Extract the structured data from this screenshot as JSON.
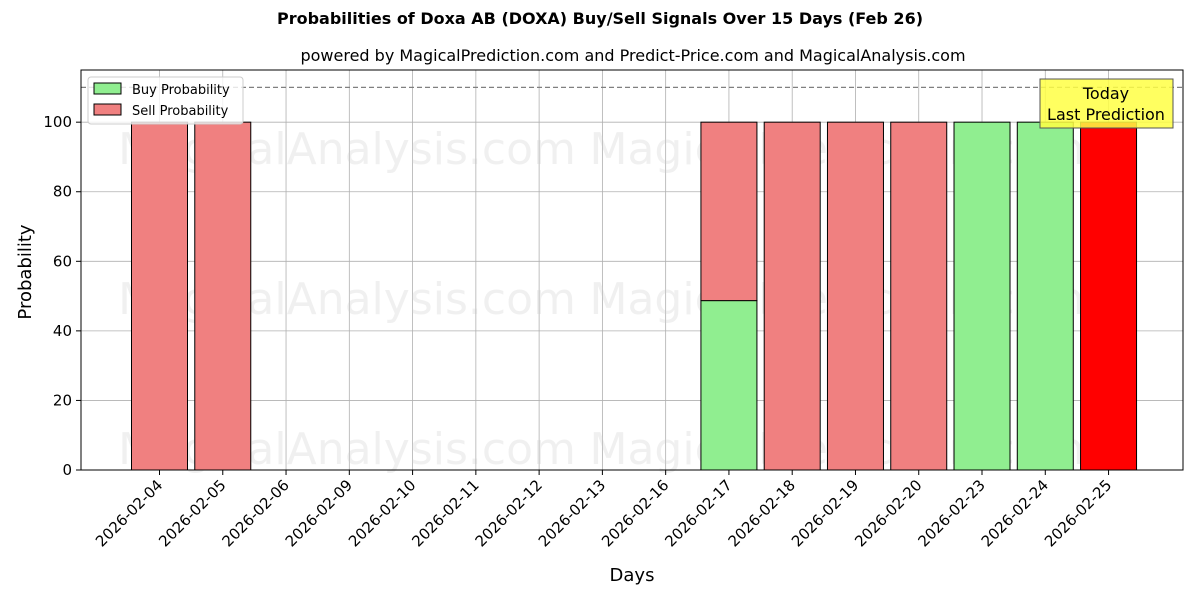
{
  "title": "Probabilities of Doxa AB (DOXA) Buy/Sell Signals Over 15 Days (Feb 26)",
  "subtitle": "powered by MagicalPrediction.com and Predict-Price.com and MagicalAnalysis.com",
  "annotation": {
    "line1": "Today",
    "line2": "Last Prediction",
    "bg": "#ffff44"
  },
  "watermarks": [
    "MagicalAnalysis.com",
    "MagicalPrediction.com"
  ],
  "colors": {
    "buy": "#90ee90",
    "sell": "#f08080",
    "today_sell": "#ff0000"
  },
  "chart_data": {
    "type": "bar",
    "stacked": true,
    "title": "Probabilities of Doxa AB (DOXA) Buy/Sell Signals Over 15 Days (Feb 26)",
    "subtitle": "powered by MagicalPrediction.com and Predict-Price.com and MagicalAnalysis.com",
    "xlabel": "Days",
    "ylabel": "Probability",
    "ylim": [
      0,
      115
    ],
    "yticks": [
      0,
      20,
      40,
      60,
      80,
      100
    ],
    "grid": true,
    "legend_position": "upper left",
    "reference_line": {
      "y": 110,
      "style": "dashed"
    },
    "categories": [
      "2026-02-04",
      "2026-02-05",
      "2026-02-06",
      "2026-02-09",
      "2026-02-10",
      "2026-02-11",
      "2026-02-12",
      "2026-02-13",
      "2026-02-16",
      "2026-02-17",
      "2026-02-18",
      "2026-02-19",
      "2026-02-20",
      "2026-02-23",
      "2026-02-24",
      "2026-02-25"
    ],
    "series": [
      {
        "name": "Buy Probability",
        "values": [
          0,
          0,
          0,
          0,
          0,
          0,
          0,
          0,
          0,
          48.7,
          0,
          0,
          0,
          100,
          100,
          0
        ]
      },
      {
        "name": "Sell Probability",
        "values": [
          100,
          100,
          0,
          0,
          0,
          0,
          0,
          0,
          0,
          51.3,
          100,
          100,
          100,
          0,
          0,
          100
        ]
      }
    ],
    "annotations": [
      {
        "text": "Today\nLast Prediction",
        "category": "2026-02-25"
      }
    ]
  }
}
